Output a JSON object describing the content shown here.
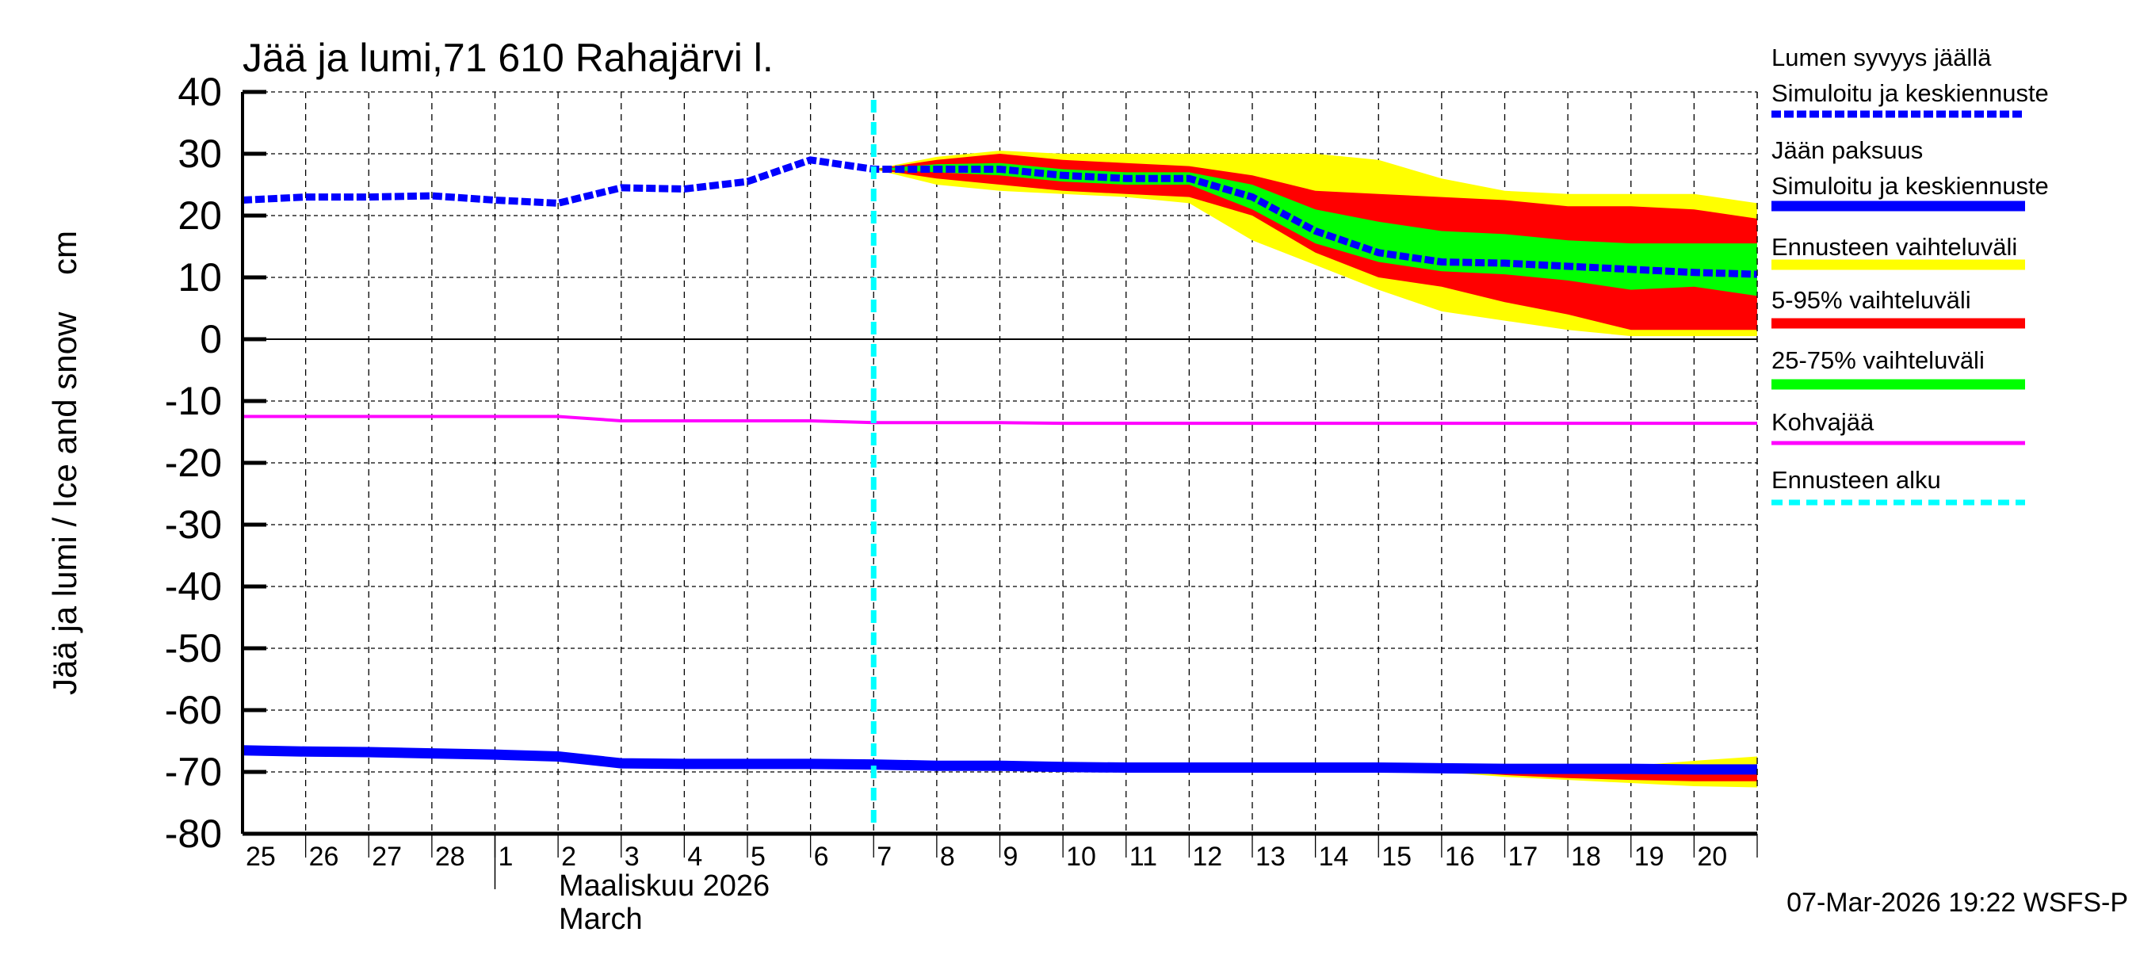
{
  "chart_data": {
    "type": "line",
    "title": "Jää ja lumi,71 610 Rahajärvi l.",
    "ylabel": "Jää ja lumi / Ice and snow    cm",
    "xlabel_month": "Maaliskuu 2026",
    "xlabel_month_en": "March",
    "timestamp": "07-Mar-2026 19:22 WSFS-P",
    "ylim": [
      -80,
      40
    ],
    "yticks": [
      40,
      30,
      20,
      10,
      0,
      -10,
      -20,
      -30,
      -40,
      -50,
      -60,
      -70,
      -80
    ],
    "x_tick_labels": [
      "25",
      "26",
      "27",
      "28",
      "1",
      "2",
      "3",
      "4",
      "5",
      "6",
      "7",
      "8",
      "9",
      "10",
      "11",
      "12",
      "13",
      "14",
      "15",
      "16",
      "17",
      "18",
      "19",
      "20"
    ],
    "x_dates": [
      "2026-02-25",
      "2026-02-26",
      "2026-02-27",
      "2026-02-28",
      "2026-03-01",
      "2026-03-02",
      "2026-03-03",
      "2026-03-04",
      "2026-03-05",
      "2026-03-06",
      "2026-03-07",
      "2026-03-08",
      "2026-03-09",
      "2026-03-10",
      "2026-03-11",
      "2026-03-12",
      "2026-03-13",
      "2026-03-14",
      "2026-03-15",
      "2026-03-16",
      "2026-03-17",
      "2026-03-18",
      "2026-03-19",
      "2026-03-20",
      "2026-03-21"
    ],
    "forecast_start": "2026-03-07",
    "grid": true,
    "legend_placement": "right",
    "colors": {
      "snow": "#0000ff",
      "ice": "#0000ff",
      "yellow": "#ffff00",
      "red": "#ff0000",
      "green": "#00ff00",
      "slush": "#ff00ff",
      "forecast_start": "#00ffff"
    },
    "series": [
      {
        "name": "Lumen syvyys jäällä Simuloitu ja keskiennuste",
        "values": [
          22.5,
          23,
          23,
          23.2,
          22.5,
          22,
          24.5,
          24.3,
          25.5,
          29,
          27.5,
          27.5,
          27.5,
          26.5,
          26,
          26,
          23,
          17.5,
          14,
          12.5,
          12.3,
          11.8,
          11.3,
          10.8,
          10.5
        ]
      },
      {
        "name": "Jään paksuus Simuloitu ja keskiennuste",
        "values": [
          -66.5,
          -66.7,
          -66.8,
          -67,
          -67.2,
          -67.5,
          -68.6,
          -68.7,
          -68.7,
          -68.7,
          -68.8,
          -69,
          -69,
          -69.2,
          -69.3,
          -69.3,
          -69.3,
          -69.3,
          -69.3,
          -69.4,
          -69.5,
          -69.5,
          -69.5,
          -69.6,
          -69.6
        ]
      },
      {
        "name": "Kohvajää",
        "values": [
          -12.5,
          -12.5,
          -12.5,
          -12.5,
          -12.5,
          -12.5,
          -13.2,
          -13.2,
          -13.2,
          -13.2,
          -13.5,
          -13.5,
          -13.5,
          -13.6,
          -13.6,
          -13.6,
          -13.6,
          -13.6,
          -13.6,
          -13.6,
          -13.6,
          -13.6,
          -13.6,
          -13.6,
          -13.6
        ]
      }
    ],
    "bands_snow": {
      "x_from": "2026-03-07",
      "yellow_max": [
        27.5,
        29.5,
        30.5,
        30,
        30,
        30,
        30,
        30,
        29,
        26,
        24,
        23.5,
        23.5,
        23.5,
        22
      ],
      "yellow_min": [
        27.5,
        25,
        24,
        23.5,
        23,
        22,
        16,
        12,
        8,
        4.5,
        3,
        1.5,
        0.5,
        0.5,
        0.5
      ],
      "red_max": [
        27.5,
        29,
        30,
        29,
        28.5,
        28,
        26.5,
        24,
        23.5,
        23,
        22.5,
        21.5,
        21.5,
        21,
        19.5
      ],
      "red_min": [
        27.5,
        26,
        25,
        24,
        23.5,
        23,
        20,
        14,
        10,
        8.5,
        6,
        4,
        1.5,
        1.5,
        1.5
      ],
      "green_max": [
        27.5,
        28.3,
        28.5,
        27.5,
        27,
        27,
        25,
        21,
        19,
        17.5,
        17,
        16,
        15.5,
        15.5,
        15.5
      ],
      "green_min": [
        27.5,
        27,
        26.5,
        25.5,
        25,
        25,
        21,
        15.5,
        12.5,
        11,
        10.5,
        9.5,
        8,
        8.5,
        7
      ]
    },
    "bands_ice": {
      "x_from": "2026-03-07",
      "yellow_max": [
        -68.8,
        -69,
        -69,
        -69.2,
        -69.3,
        -69.3,
        -69.3,
        -69.3,
        -69.3,
        -69.4,
        -69.4,
        -69.3,
        -69,
        -68.2,
        -67.5
      ],
      "yellow_min": [
        -68.8,
        -69,
        -69,
        -69.2,
        -69.3,
        -69.3,
        -69.3,
        -69.3,
        -69.6,
        -70,
        -70.8,
        -71.3,
        -71.8,
        -72.3,
        -72.5
      ],
      "red_max": [
        -68.8,
        -69,
        -69,
        -69.2,
        -69.3,
        -69.3,
        -69.3,
        -69.3,
        -69.3,
        -69.4,
        -69.5,
        -69.5,
        -69.5,
        -69.6,
        -69.6
      ],
      "red_min": [
        -68.8,
        -69,
        -69,
        -69.2,
        -69.3,
        -69.3,
        -69.3,
        -69.3,
        -69.4,
        -69.8,
        -70.5,
        -71,
        -71.3,
        -71.5,
        -71.5
      ],
      "green_max": [
        -68.8,
        -69,
        -69,
        -69.2,
        -69.3,
        -69.3,
        -69.3,
        -69.3,
        -69.3,
        -69.4,
        -69.5,
        -69.5,
        -69.5,
        -69.6,
        -69.6
      ],
      "green_min": [
        -68.8,
        -69,
        -69,
        -69.2,
        -69.3,
        -69.3,
        -69.3,
        -69.3,
        -69.3,
        -69.5,
        -69.7,
        -69.8,
        -69.9,
        -70,
        -70
      ]
    },
    "legend": [
      {
        "line1": "Lumen syvyys jäällä",
        "line2": "Simuloitu ja keskiennuste",
        "style": "dashed-blue"
      },
      {
        "line1": "Jään paksuus",
        "line2": "Simuloitu ja keskiennuste",
        "style": "solid-blue"
      },
      {
        "line1": "Ennusteen vaihteluväli",
        "style": "yellow"
      },
      {
        "line1": "5-95% vaihteluväli",
        "style": "red"
      },
      {
        "line1": "25-75% vaihteluväli",
        "style": "green"
      },
      {
        "line1": "Kohvajää",
        "style": "magenta"
      },
      {
        "line1": "Ennusteen alku",
        "style": "cyan-dashed"
      }
    ]
  }
}
